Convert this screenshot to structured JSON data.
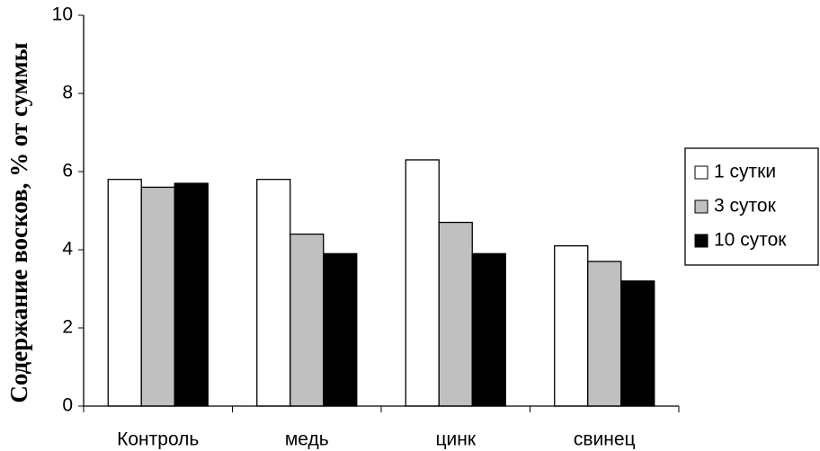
{
  "chart_data": {
    "type": "bar",
    "y_label": "Содержание восков, % от суммы",
    "categories": [
      "Контроль",
      "медь",
      "цинк",
      "свинец"
    ],
    "series": [
      {
        "name": "1 сутки",
        "color": "#ffffff",
        "values": [
          5.8,
          5.8,
          6.3,
          4.1
        ]
      },
      {
        "name": "3 суток",
        "color": "#c0c0c0",
        "values": [
          5.6,
          4.4,
          4.7,
          3.7
        ]
      },
      {
        "name": "10 суток",
        "color": "#000000",
        "values": [
          5.7,
          3.9,
          3.9,
          3.2
        ]
      }
    ],
    "ylim": [
      0,
      10
    ],
    "yticks": [
      0,
      2,
      4,
      6,
      8,
      10
    ],
    "grid": false,
    "legend": "right"
  }
}
